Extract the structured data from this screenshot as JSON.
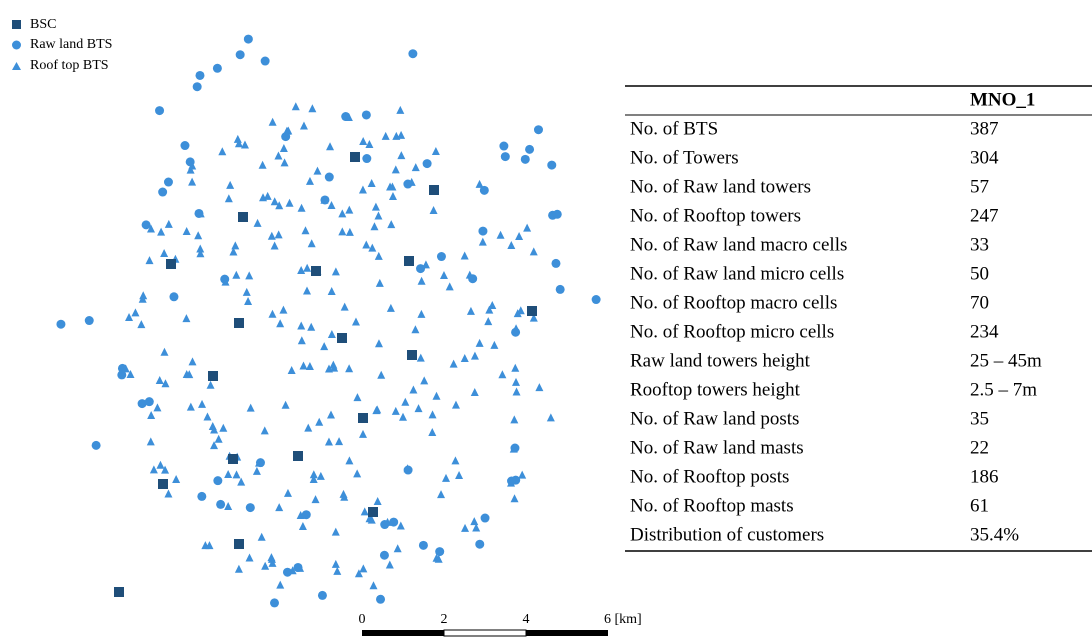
{
  "legend": [
    {
      "label": "BSC"
    },
    {
      "label": "Raw land BTS"
    },
    {
      "label": "Roof top BTS"
    }
  ],
  "table": {
    "header": "MNO_1",
    "rows": [
      [
        "No. of BTS",
        "387"
      ],
      [
        "No. of Towers",
        "304"
      ],
      [
        "No. of Raw land towers",
        "57"
      ],
      [
        "No. of Rooftop towers",
        "247"
      ],
      [
        "No. of Raw land macro cells",
        "33"
      ],
      [
        "No. of Raw land micro cells",
        "50"
      ],
      [
        "No. of Rooftop macro cells",
        "70"
      ],
      [
        "No. of Rooftop micro cells",
        "234"
      ],
      [
        "Raw land towers height",
        "25 – 45m"
      ],
      [
        "Rooftop towers height",
        "2.5 – 7m"
      ],
      [
        "No. of Raw land posts",
        "35"
      ],
      [
        "No. of Raw land masts",
        "22"
      ],
      [
        "No. of Rooftop posts",
        "186"
      ],
      [
        "No. of Rooftop masts",
        "61"
      ],
      [
        "Distribution of customers",
        "35.4%"
      ]
    ]
  },
  "scale_bar": {
    "labels": [
      "0",
      "2",
      "4",
      "6 [km]"
    ]
  }
}
